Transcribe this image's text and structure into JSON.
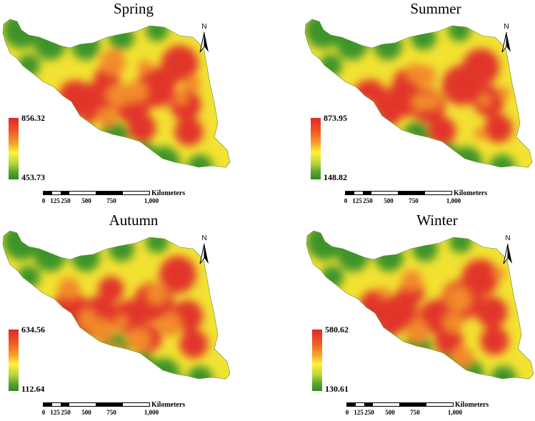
{
  "panels": [
    {
      "title": "Spring",
      "legend_max": "856.32",
      "legend_min": "453.73"
    },
    {
      "title": "Summer",
      "legend_max": "873.95",
      "legend_min": "148.82"
    },
    {
      "title": "Autumn",
      "legend_max": "634.56",
      "legend_min": "112.64"
    },
    {
      "title": "Winter",
      "legend_max": "580.62",
      "legend_min": "130.61"
    }
  ],
  "north_label": "N",
  "scale": {
    "unit": "Kilometers",
    "ticks": [
      "0",
      "125",
      "250",
      "500",
      "750",
      "1,000"
    ]
  },
  "colors": {
    "high": "#e0282a",
    "mid": "#fff23a",
    "low": "#2f8a23"
  }
}
